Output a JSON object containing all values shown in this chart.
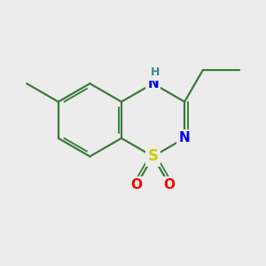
{
  "background_color": "#ececec",
  "bond_color": "#3a7a3a",
  "bond_width": 1.6,
  "atom_colors": {
    "N": "#0000ee",
    "S": "#cccc00",
    "O": "#ff0000",
    "H": "#3a8888"
  },
  "font_size_heavy": 11,
  "font_size_H": 9,
  "figsize": [
    3.0,
    3.0
  ],
  "dpi": 100
}
